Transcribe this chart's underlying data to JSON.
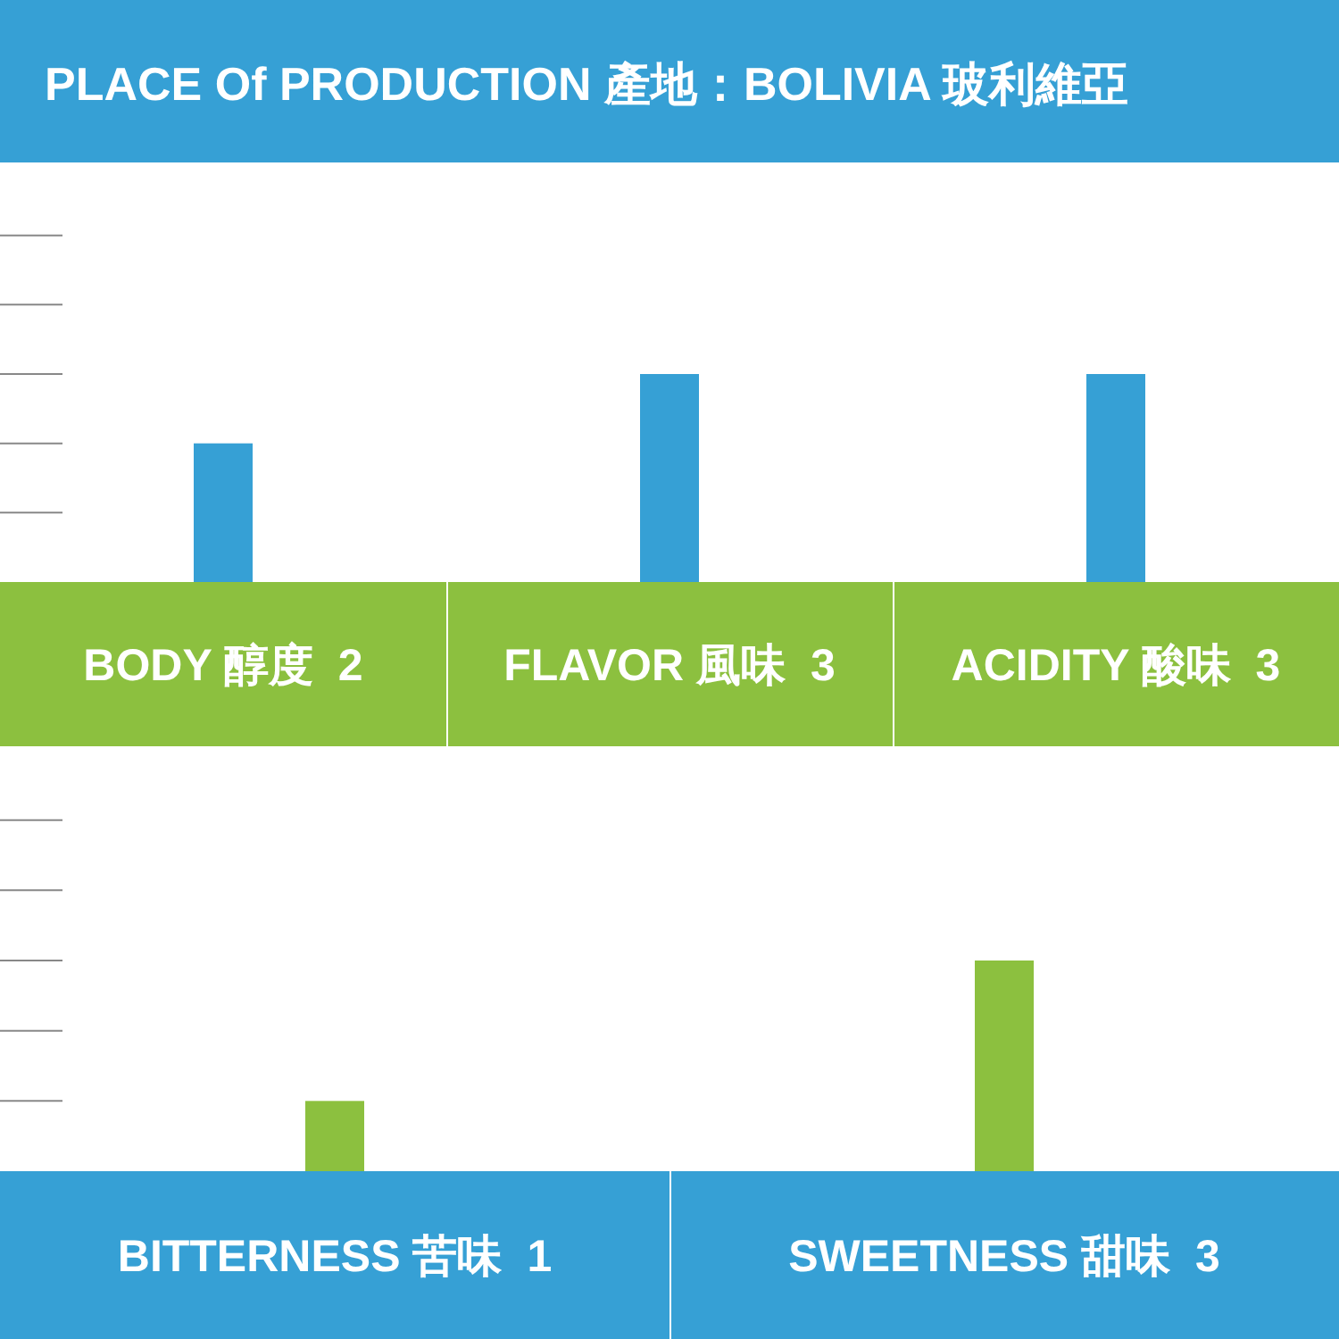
{
  "chart_data": [
    {
      "type": "bar",
      "title": "PLACE Of PRODUCTION 產地：BOLIVIA 玻利維亞",
      "categories": [
        "BODY 醇度",
        "FLAVOR 風味",
        "ACIDITY 酸味"
      ],
      "values": [
        2,
        3,
        3
      ],
      "color": "#36a0d5",
      "data_labels": true
    },
    {
      "type": "bar",
      "categories": [
        "BITTERNESS 苦味",
        "SWEETNESS 甜味"
      ],
      "values": [
        1,
        3
      ],
      "color": "#8cc03f",
      "data_labels": true
    }
  ]
}
